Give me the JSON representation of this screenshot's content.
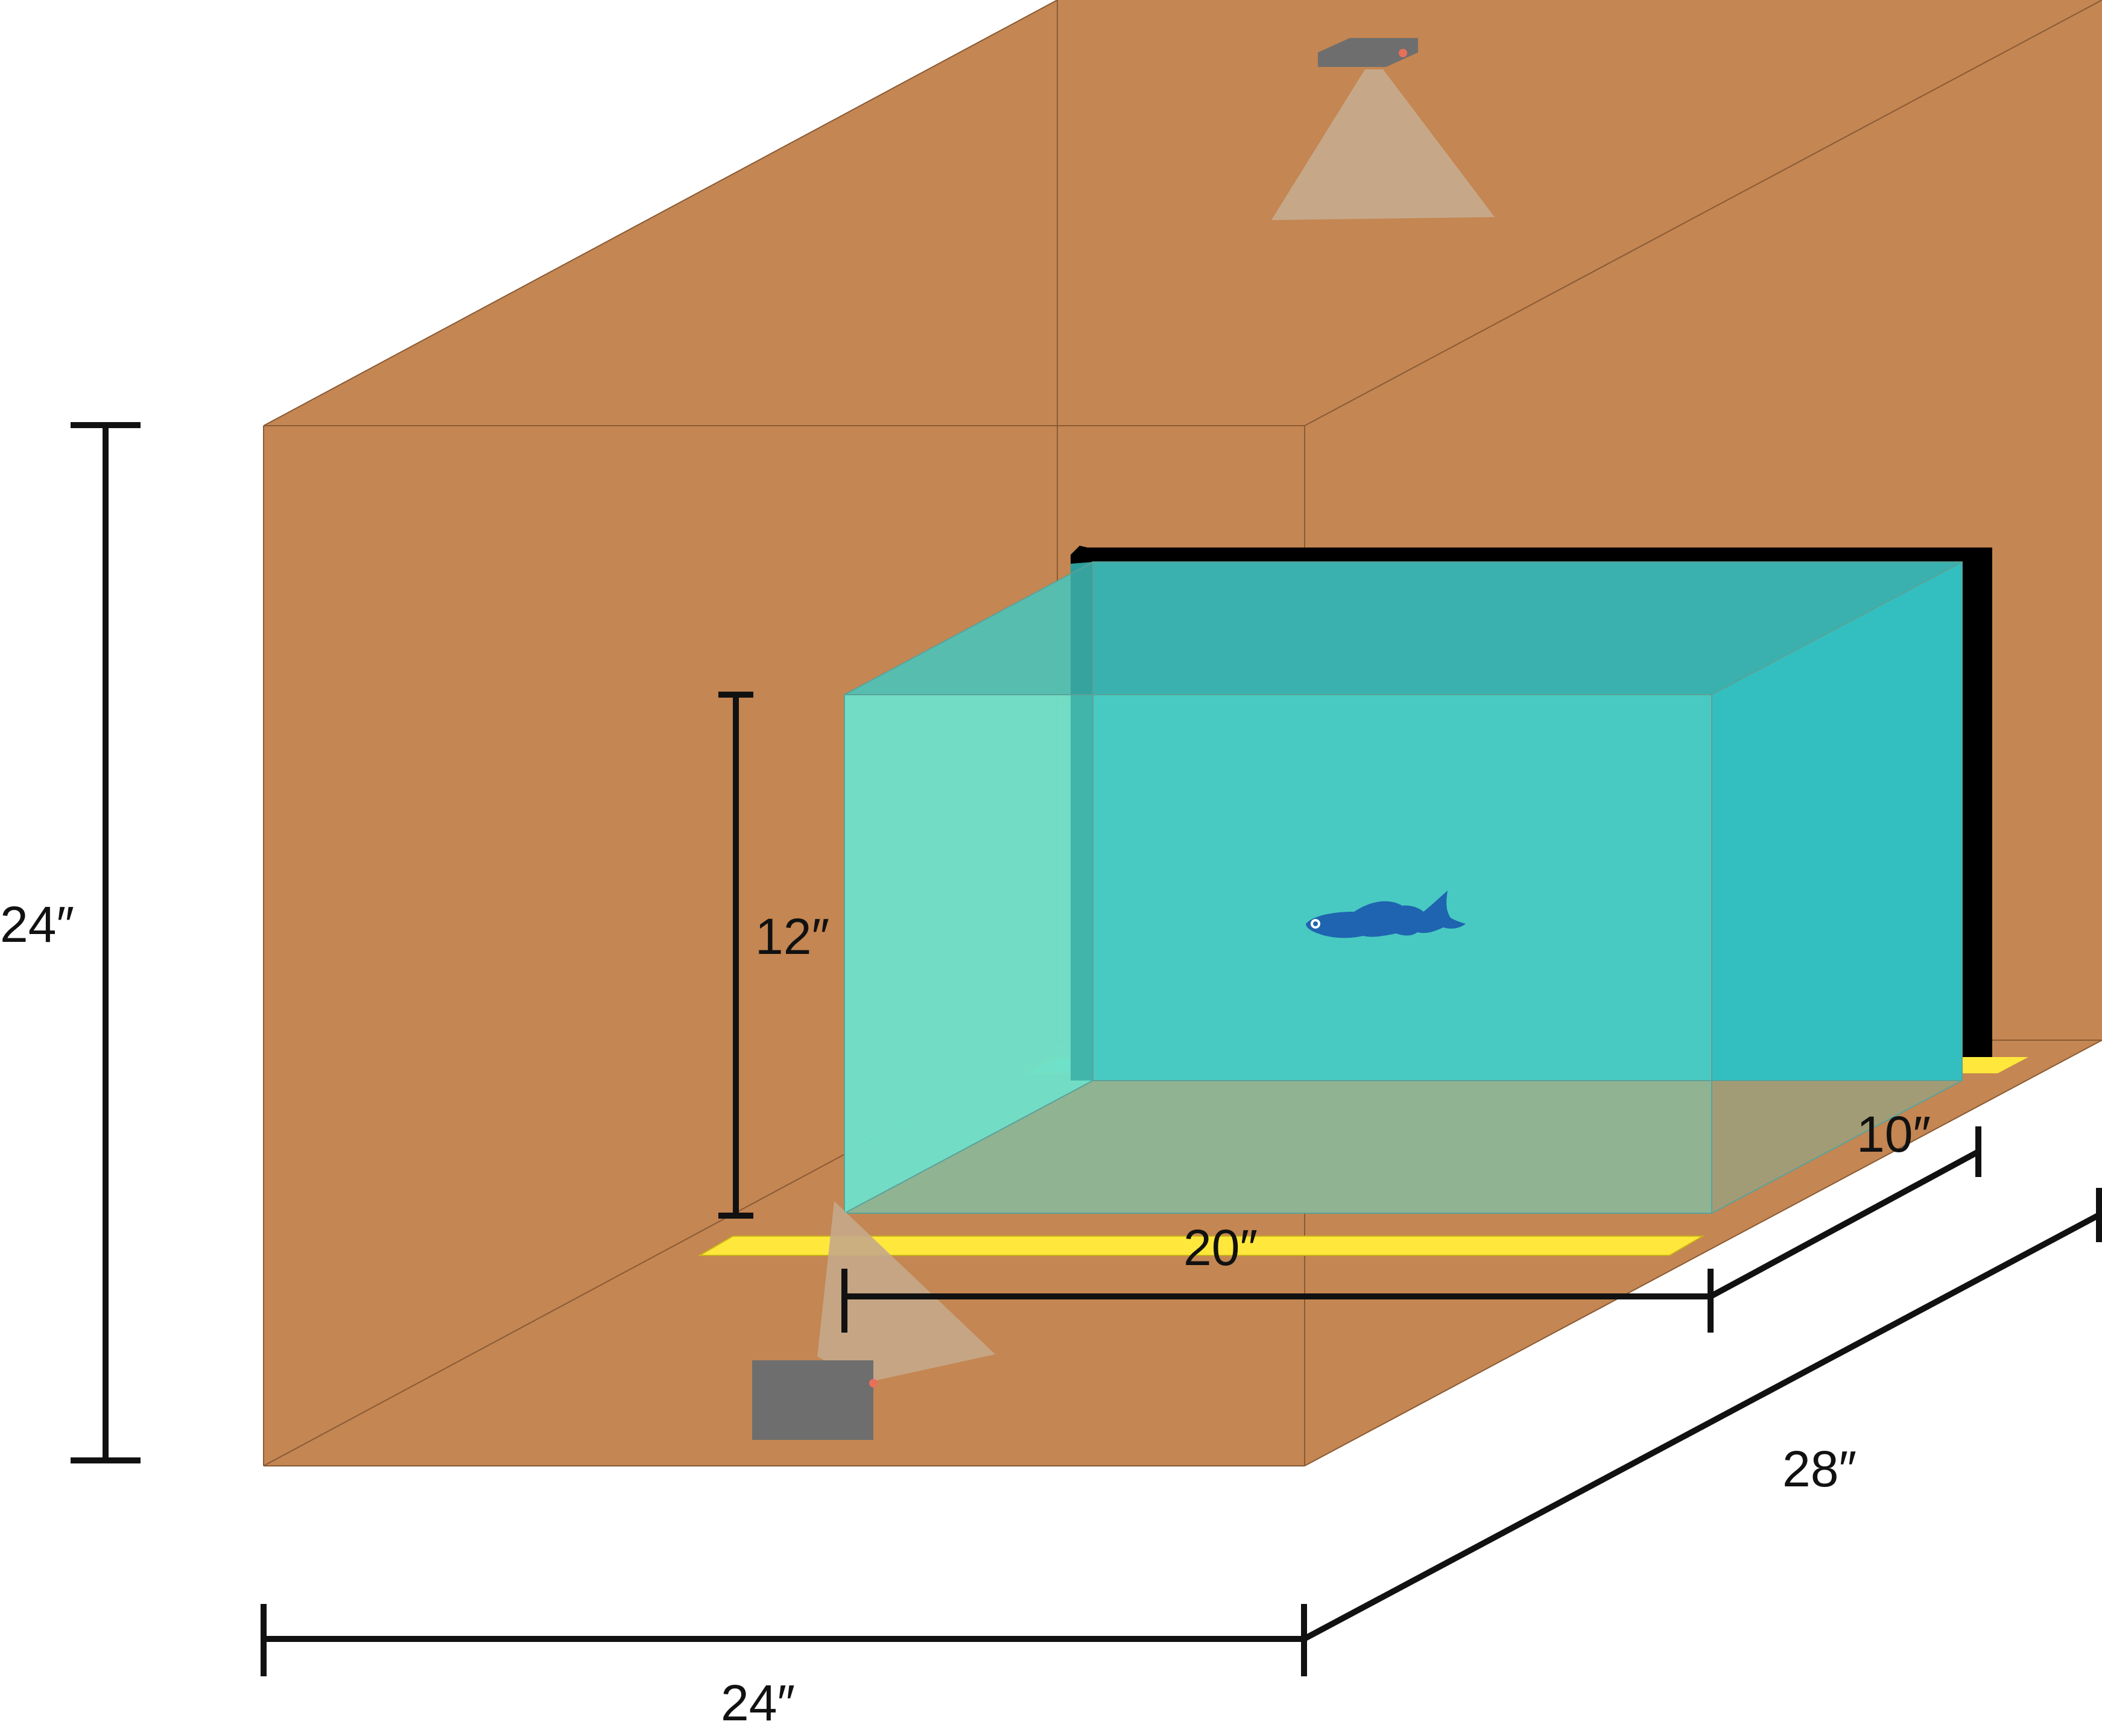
{
  "labels": {
    "enclosure_height": "24″",
    "tank_height": "12″",
    "tank_depth": "10″",
    "tank_length": "20″",
    "enclosure_depth": "28″",
    "enclosure_width": "24″"
  },
  "colors": {
    "enclosure": "#c48652",
    "enclosure_edge": "#8a5a34",
    "tank_water": "#33bfbf",
    "tank_front": "#6fe0c8",
    "tank_floor": "#a29c76",
    "light_strip": "#ffe83b",
    "light_strip_inner": "#6ff7d2",
    "camera": "#6e6e6e",
    "camera_beam": "#c6a889",
    "camera_led": "#e8705a",
    "monitor_frame": "#000000",
    "fish": "#1f64b0",
    "dimension_line": "#111111"
  },
  "icons": {
    "top_camera": "camera-icon",
    "side_camera": "camera-icon",
    "fish": "zebrafish-icon"
  }
}
